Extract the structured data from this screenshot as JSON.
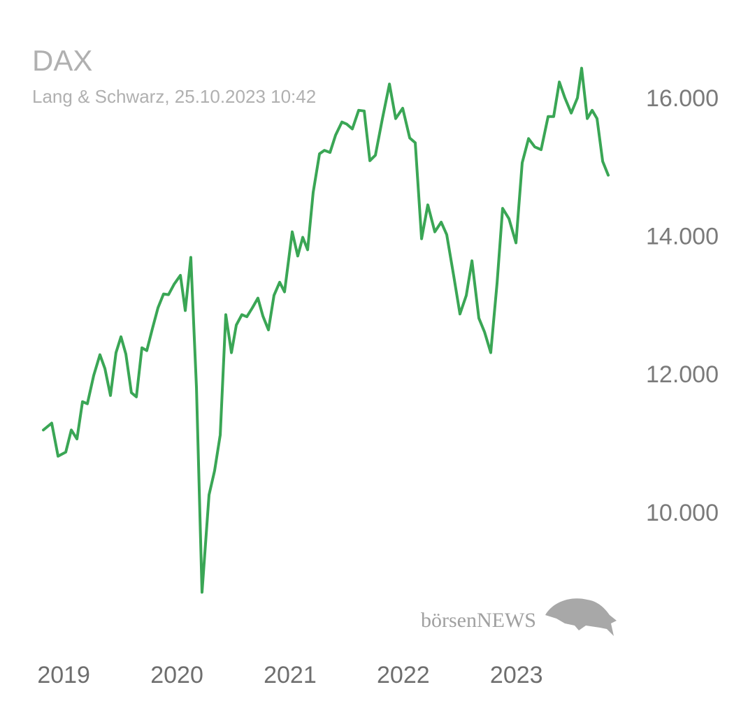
{
  "chart_data": {
    "type": "line",
    "title": "DAX",
    "subtitle": "Lang & Schwarz, 25.10.2023 10:42",
    "color": "#3aa655",
    "grid": false,
    "xlim": [
      2018.82,
      2023.82
    ],
    "xticks": [
      2019,
      2020,
      2021,
      2022,
      2023
    ],
    "ylim": [
      8700,
      16500
    ],
    "yticks": [
      {
        "value": 10000,
        "label": "10.000"
      },
      {
        "value": 12000,
        "label": "12.000"
      },
      {
        "value": 14000,
        "label": "14.000"
      },
      {
        "value": 16000,
        "label": "16.000"
      }
    ],
    "x": [
      2018.82,
      2018.894,
      2018.95,
      2019.018,
      2019.067,
      2019.117,
      2019.166,
      2019.209,
      2019.265,
      2019.32,
      2019.364,
      2019.413,
      2019.462,
      2019.506,
      2019.549,
      2019.598,
      2019.642,
      2019.691,
      2019.734,
      2019.784,
      2019.833,
      2019.882,
      2019.926,
      2019.975,
      2020.031,
      2020.074,
      2020.123,
      2020.173,
      2020.222,
      2020.284,
      2020.333,
      2020.383,
      2020.432,
      2020.482,
      2020.525,
      2020.574,
      2020.618,
      2020.667,
      2020.716,
      2020.76,
      2020.809,
      2020.858,
      2020.908,
      2020.951,
      2021.019,
      2021.068,
      2021.112,
      2021.155,
      2021.204,
      2021.26,
      2021.303,
      2021.353,
      2021.402,
      2021.458,
      2021.501,
      2021.55,
      2021.606,
      2021.655,
      2021.705,
      2021.754,
      2021.816,
      2021.878,
      2021.933,
      2021.995,
      2022.057,
      2022.106,
      2022.162,
      2022.217,
      2022.279,
      2022.335,
      2022.384,
      2022.446,
      2022.501,
      2022.557,
      2022.607,
      2022.668,
      2022.718,
      2022.773,
      2022.829,
      2022.878,
      2022.934,
      2022.996,
      2023.051,
      2023.107,
      2023.162,
      2023.218,
      2023.28,
      2023.329,
      2023.379,
      2023.428,
      2023.484,
      2023.539,
      2023.576,
      2023.626,
      2023.669,
      2023.712,
      2023.762,
      2023.811
    ],
    "values": [
      11220,
      11320,
      10840,
      10900,
      11220,
      11090,
      11630,
      11600,
      12010,
      12310,
      12110,
      11720,
      12340,
      12570,
      12320,
      11760,
      11700,
      12410,
      12370,
      12690,
      12990,
      13190,
      13180,
      13330,
      13460,
      12950,
      13720,
      11830,
      8870,
      10280,
      10630,
      11150,
      12890,
      12340,
      12740,
      12890,
      12860,
      12990,
      13130,
      12870,
      12670,
      13170,
      13360,
      13220,
      14090,
      13740,
      14010,
      13830,
      14660,
      15220,
      15270,
      15240,
      15490,
      15680,
      15650,
      15580,
      15850,
      15840,
      15120,
      15200,
      15730,
      16230,
      15730,
      15880,
      15450,
      15380,
      13990,
      14480,
      14090,
      14230,
      14050,
      13450,
      12900,
      13170,
      13670,
      12840,
      12640,
      12340,
      13350,
      14430,
      14280,
      13930,
      15090,
      15440,
      15320,
      15280,
      15760,
      15760,
      16260,
      16030,
      15810,
      16030,
      16460,
      15730,
      15850,
      15730,
      15110,
      14910
    ]
  },
  "logo": "börsenNEWS"
}
